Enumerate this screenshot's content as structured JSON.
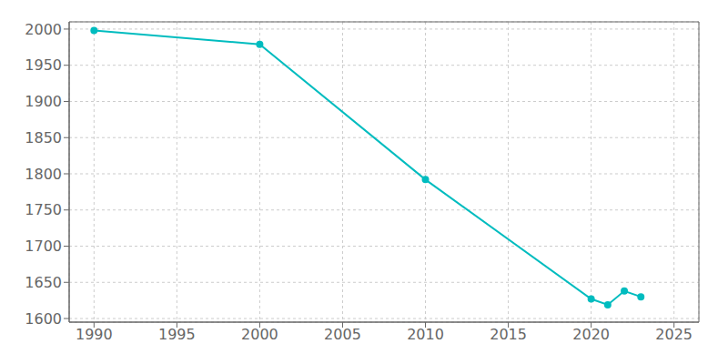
{
  "chart_data": {
    "type": "line",
    "x": [
      1990,
      2000,
      2010,
      2020,
      2021,
      2022,
      2023
    ],
    "values": [
      1998,
      1979,
      1792,
      1627,
      1619,
      1638,
      1630
    ],
    "color": "#00BCBF",
    "marker": "circle",
    "xlim": [
      1988.5,
      2026.5
    ],
    "ylim": [
      1595,
      2010
    ],
    "xticks": [
      1990,
      1995,
      2000,
      2005,
      2010,
      2015,
      2020,
      2025
    ],
    "yticks": [
      1600,
      1650,
      1700,
      1750,
      1800,
      1850,
      1900,
      1950,
      2000
    ],
    "grid": true
  }
}
